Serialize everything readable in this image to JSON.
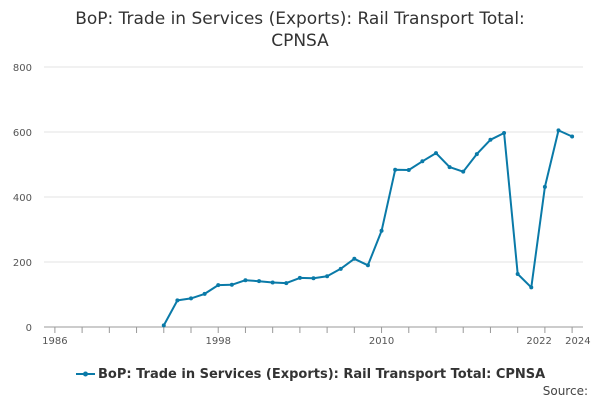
{
  "chart_data": {
    "type": "line",
    "title_lines": [
      "BoP: Trade in Services (Exports): Rail Transport Total:",
      "CPNSA"
    ],
    "xlabel": "",
    "ylabel": "",
    "xlim": [
      1985.2,
      2024.8
    ],
    "ylim": [
      0,
      800
    ],
    "x_ticks": [
      1986,
      1998,
      2010,
      2022,
      2024
    ],
    "y_ticks": [
      0,
      200,
      400,
      600,
      800
    ],
    "grid": true,
    "legend_position": "bottom",
    "series": [
      {
        "name": "BoP: Trade in Services (Exports): Rail Transport Total: CPNSA",
        "color": "#0a7aa8",
        "x": [
          1994,
          1995,
          1996,
          1997,
          1998,
          1999,
          2000,
          2001,
          2002,
          2003,
          2004,
          2005,
          2006,
          2007,
          2008,
          2009,
          2010,
          2011,
          2012,
          2013,
          2014,
          2015,
          2016,
          2017,
          2018,
          2019,
          2020,
          2021,
          2022,
          2023,
          2024
        ],
        "values": [
          5,
          82,
          88,
          102,
          129,
          130,
          144,
          141,
          137,
          135,
          151,
          150,
          156,
          179,
          210,
          190,
          296,
          484,
          483,
          510,
          535,
          492,
          478,
          532,
          576,
          597,
          163,
          122,
          431,
          605,
          586
        ]
      }
    ]
  },
  "source_label": "Source:"
}
